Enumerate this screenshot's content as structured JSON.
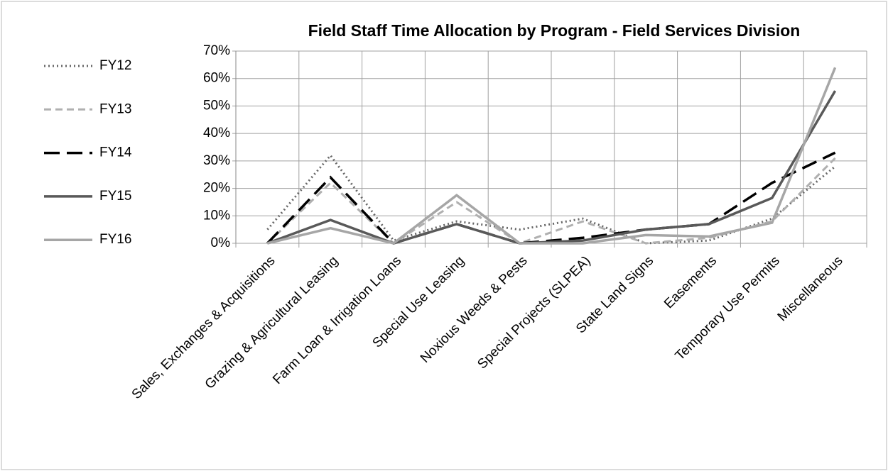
{
  "chart_data": {
    "type": "line",
    "title": "Field Staff Time Allocation by Program - Field Services Division",
    "categories": [
      "Sales, Exchanges & Acquisitions",
      "Grazing & Agricultural Leasing",
      "Farm Loan  & Irrigation Loans",
      "Special Use Leasing",
      "Noxious Weeds & Pests",
      "Special Projects (SLPEA)",
      "State Land Signs",
      "Easements",
      "Temporary Use Permits",
      "Miscellaneous"
    ],
    "series": [
      {
        "name": "FY12",
        "color": "#666666",
        "line_style": "dotted",
        "values": [
          5,
          32,
          1,
          8,
          5,
          9,
          0,
          1,
          9,
          28
        ]
      },
      {
        "name": "FY13",
        "color": "#b0b0b0",
        "line_style": "dashed",
        "values": [
          0,
          22,
          0,
          15,
          0,
          8,
          0,
          2,
          8,
          31
        ]
      },
      {
        "name": "FY14",
        "color": "#000000",
        "line_style": "long-dash",
        "values": [
          0,
          24,
          0,
          7,
          0,
          2,
          5,
          7,
          22,
          33
        ]
      },
      {
        "name": "FY15",
        "color": "#595959",
        "line_style": "solid",
        "values": [
          0,
          8.5,
          0,
          7,
          0,
          1,
          5,
          7,
          16.5,
          55.5
        ]
      },
      {
        "name": "FY16",
        "color": "#a6a6a6",
        "line_style": "solid",
        "values": [
          0,
          5.5,
          0,
          17.5,
          0,
          0,
          3,
          2.5,
          7.5,
          64
        ]
      }
    ],
    "ylim": [
      0,
      70
    ],
    "yticks": [
      {
        "value": 0,
        "label": "0%"
      },
      {
        "value": 10,
        "label": "10%"
      },
      {
        "value": 20,
        "label": "20%"
      },
      {
        "value": 30,
        "label": "30%"
      },
      {
        "value": 40,
        "label": "40%"
      },
      {
        "value": 50,
        "label": "50%"
      },
      {
        "value": 60,
        "label": "60%"
      },
      {
        "value": 70,
        "label": "70%"
      }
    ],
    "grid": true,
    "legend": "left"
  }
}
